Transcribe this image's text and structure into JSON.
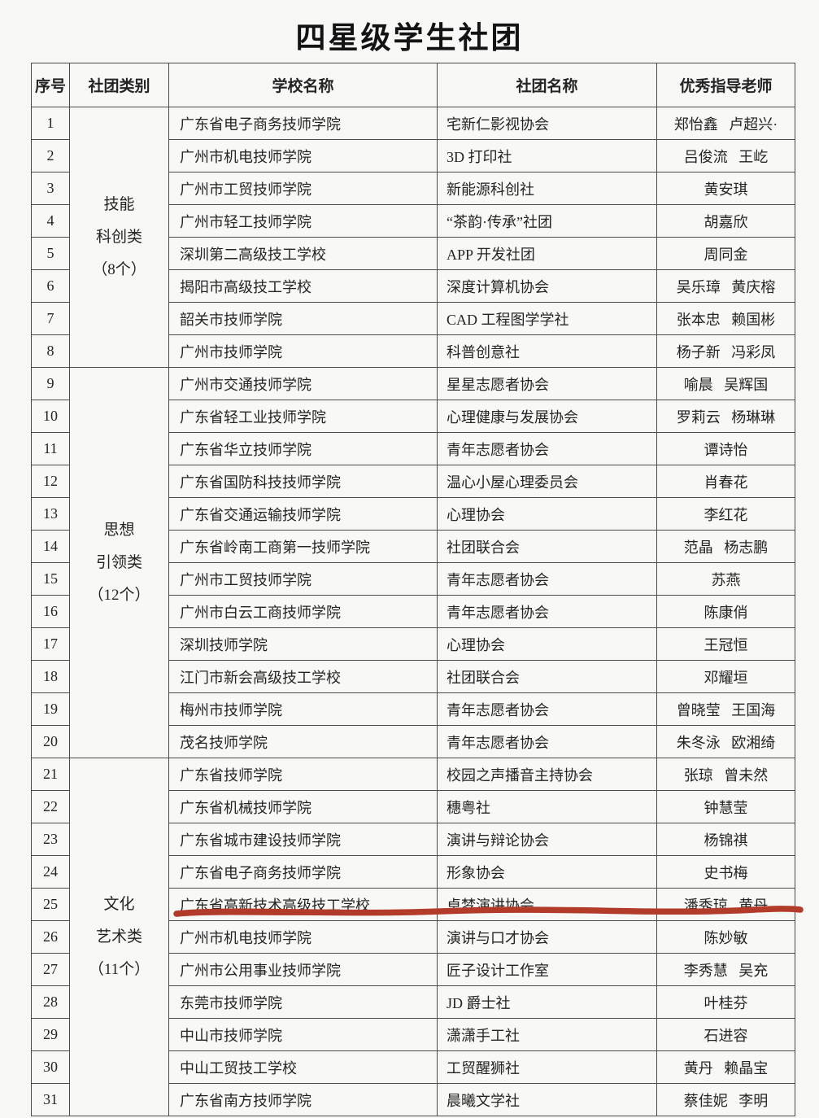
{
  "title": "四星级学生社团",
  "colors": {
    "accent_red": "#b23b2a",
    "border": "#4a4a4a",
    "background": "#f8f8f6",
    "text": "#222222"
  },
  "table": {
    "headers": [
      "序号",
      "社团类别",
      "学校名称",
      "社团名称",
      "优秀指导老师"
    ],
    "categories": [
      {
        "label_lines": [
          "技能",
          "科创类",
          "（8个）"
        ],
        "row_count": 8
      },
      {
        "label_lines": [
          "思想",
          "引领类",
          "（12个）"
        ],
        "row_count": 12
      },
      {
        "label_lines": [
          "文化",
          "艺术类",
          "（11个）"
        ],
        "row_count": 11
      }
    ],
    "rows": [
      {
        "no": "1",
        "school": "广东省电子商务技师学院",
        "club": "宅新仁影视协会",
        "advisors": "郑怡鑫 卢超兴·"
      },
      {
        "no": "2",
        "school": "广州市机电技师学院",
        "club": "3D 打印社",
        "advisors": "吕俊流 王屹"
      },
      {
        "no": "3",
        "school": "广州市工贸技师学院",
        "club": "新能源科创社",
        "advisors": "黄安琪"
      },
      {
        "no": "4",
        "school": "广州市轻工技师学院",
        "club": "“茶韵·传承”社团",
        "advisors": "胡嘉欣"
      },
      {
        "no": "5",
        "school": "深圳第二高级技工学校",
        "club": "APP 开发社团",
        "advisors": "周同金"
      },
      {
        "no": "6",
        "school": "揭阳市高级技工学校",
        "club": "深度计算机协会",
        "advisors": "吴乐璋 黄庆榕"
      },
      {
        "no": "7",
        "school": "韶关市技师学院",
        "club": "CAD 工程图学学社",
        "advisors": "张本忠 赖国彬"
      },
      {
        "no": "8",
        "school": "广州市技师学院",
        "club": "科普创意社",
        "advisors": "杨子新 冯彩凤"
      },
      {
        "no": "9",
        "school": "广州市交通技师学院",
        "club": "星星志愿者协会",
        "advisors": "喻晨 吴辉国"
      },
      {
        "no": "10",
        "school": "广东省轻工业技师学院",
        "club": "心理健康与发展协会",
        "advisors": "罗莉云 杨琳琳"
      },
      {
        "no": "11",
        "school": "广东省华立技师学院",
        "club": "青年志愿者协会",
        "advisors": "谭诗怡"
      },
      {
        "no": "12",
        "school": "广东省国防科技技师学院",
        "club": "温心小屋心理委员会",
        "advisors": "肖春花"
      },
      {
        "no": "13",
        "school": "广东省交通运输技师学院",
        "club": "心理协会",
        "advisors": "李红花"
      },
      {
        "no": "14",
        "school": "广东省岭南工商第一技师学院",
        "club": "社团联合会",
        "advisors": "范晶 杨志鹏"
      },
      {
        "no": "15",
        "school": "广州市工贸技师学院",
        "club": "青年志愿者协会",
        "advisors": "苏燕"
      },
      {
        "no": "16",
        "school": "广州市白云工商技师学院",
        "club": "青年志愿者协会",
        "advisors": "陈康俏"
      },
      {
        "no": "17",
        "school": "深圳技师学院",
        "club": "心理协会",
        "advisors": "王冠恒"
      },
      {
        "no": "18",
        "school": "江门市新会高级技工学校",
        "club": "社团联合会",
        "advisors": "邓耀垣"
      },
      {
        "no": "19",
        "school": "梅州市技师学院",
        "club": "青年志愿者协会",
        "advisors": "曾晓莹 王国海"
      },
      {
        "no": "20",
        "school": "茂名技师学院",
        "club": "青年志愿者协会",
        "advisors": "朱冬泳 欧湘绮"
      },
      {
        "no": "21",
        "school": "广东省技师学院",
        "club": "校园之声播音主持协会",
        "advisors": "张琼 曾未然"
      },
      {
        "no": "22",
        "school": "广东省机械技师学院",
        "club": "穗粤社",
        "advisors": "钟慧莹"
      },
      {
        "no": "23",
        "school": "广东省城市建设技师学院",
        "club": "演讲与辩论协会",
        "advisors": "杨锦祺"
      },
      {
        "no": "24",
        "school": "广东省电子商务技师学院",
        "club": "形象协会",
        "advisors": "史书梅"
      },
      {
        "no": "25",
        "school": "广东省高新技术高级技工学校",
        "club": "卓梦演讲协会",
        "advisors": "潘秀琼 黄丹"
      },
      {
        "no": "26",
        "school": "广州市机电技师学院",
        "club": "演讲与口才协会",
        "advisors": "陈妙敏"
      },
      {
        "no": "27",
        "school": "广州市公用事业技师学院",
        "club": "匠子设计工作室",
        "advisors": "李秀慧 吴充"
      },
      {
        "no": "28",
        "school": "东莞市技师学院",
        "club": "JD 爵士社",
        "advisors": "叶桂芬"
      },
      {
        "no": "29",
        "school": "中山市技师学院",
        "club": "潇潇手工社",
        "advisors": "石进容"
      },
      {
        "no": "30",
        "school": "中山工贸技工学校",
        "club": "工贸醒狮社",
        "advisors": "黄丹 赖晶宝"
      },
      {
        "no": "31",
        "school": "广东省南方技师学院",
        "club": "晨曦文学社",
        "advisors": "蔡佳妮 李明"
      }
    ]
  },
  "annotation": {
    "type": "red-underline",
    "highlighted_row": "25",
    "color": "#b23b2a"
  }
}
